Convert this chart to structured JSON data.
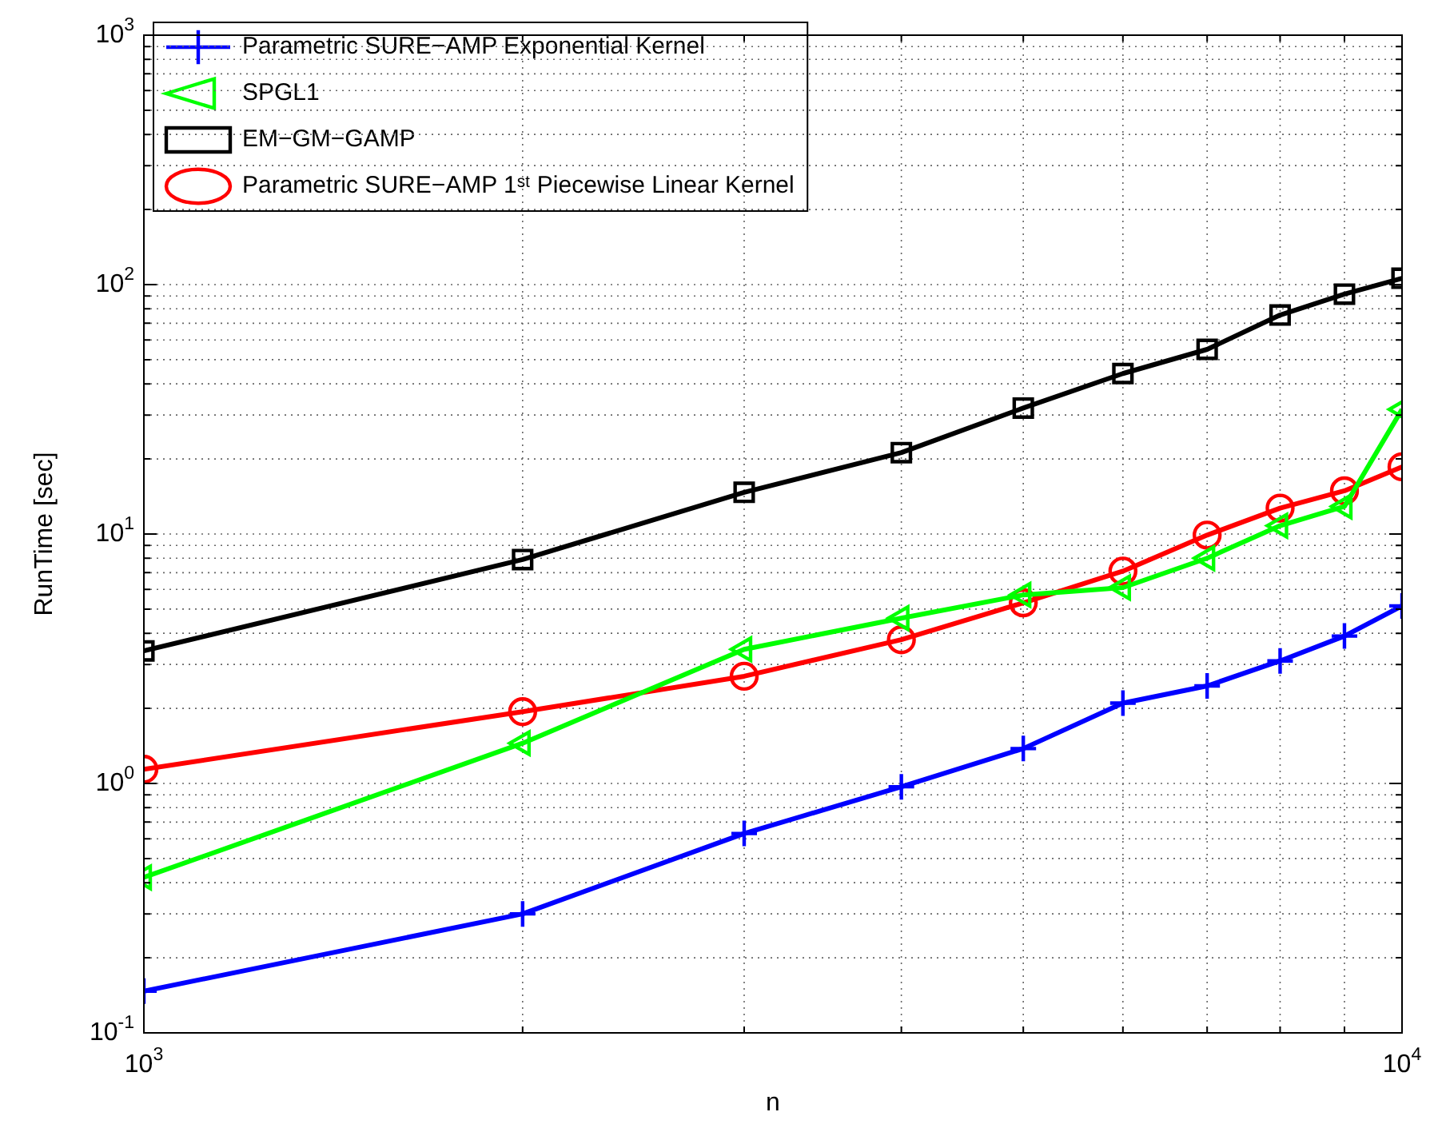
{
  "chart_data": {
    "type": "line",
    "xlabel": "n",
    "ylabel": "RunTime [sec]",
    "log": "xy",
    "grid": true,
    "legend": "top left",
    "xlim": [
      1000,
      10000
    ],
    "ylim": [
      0.1,
      1000
    ],
    "xticks": [
      {
        "value": 1000,
        "label": "10$^{3}$"
      },
      {
        "value": 10000,
        "label": "10$^{4}$"
      }
    ],
    "yticks": [
      {
        "value": 0.1,
        "label": "10$^{-1}$"
      },
      {
        "value": 1,
        "label": "10$^{0}$"
      },
      {
        "value": 10,
        "label": "10$^{1}$"
      },
      {
        "value": 100,
        "label": "10$^{2}$"
      },
      {
        "value": 1000,
        "label": "10$^{3}$"
      }
    ],
    "x": [
      1000,
      2000,
      3000,
      4000,
      5000,
      6000,
      7000,
      8000,
      9000,
      10000
    ],
    "series": [
      {
        "name": "Parametric SURE−AMP Exponential Kernel",
        "color": "#0000ff",
        "marker": "cross",
        "values": [
          0.147,
          0.3,
          0.63,
          0.97,
          1.38,
          2.1,
          2.46,
          3.1,
          3.9,
          5.15
        ]
      },
      {
        "name": "SPGL1",
        "color": "#00ff00",
        "marker": "triangle",
        "values": [
          0.42,
          1.45,
          3.45,
          4.6,
          5.7,
          6.1,
          8.0,
          10.8,
          12.9,
          31.6
        ]
      },
      {
        "name": "EM−GM−GAMP",
        "color": "#000000",
        "marker": "square",
        "values": [
          3.4,
          7.9,
          14.7,
          21.2,
          32,
          44,
          55,
          75.5,
          91.6,
          106
        ]
      },
      {
        "name": "Parametric SURE−AMP 1ˢᵗ Piecewise Linear Kernel",
        "color": "#ff0000",
        "marker": "circle",
        "values": [
          1.14,
          1.94,
          2.69,
          3.77,
          5.3,
          7.1,
          9.9,
          12.7,
          14.9,
          18.6
        ]
      }
    ]
  }
}
